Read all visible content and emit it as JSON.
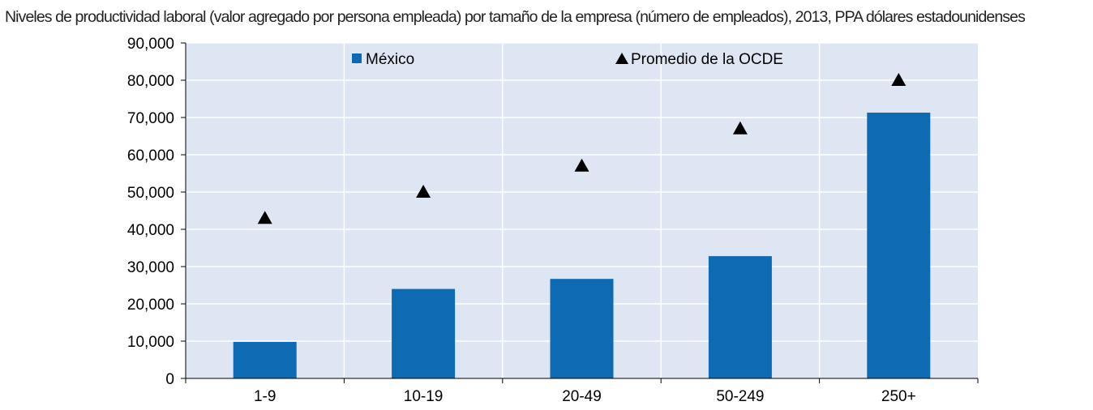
{
  "chart_data": {
    "type": "bar",
    "title": "Niveles de productividad laboral (valor agregado por persona empleada) por tamaño de la empresa (número de empleados), 2013, PPA dólares estadounidenses",
    "categories": [
      "1-9",
      "10-19",
      "20-49",
      "50-249",
      "250+"
    ],
    "series": [
      {
        "name": "México",
        "kind": "bar",
        "color": "#0f6ab4",
        "values": [
          9800,
          24000,
          26700,
          32800,
          71300
        ]
      },
      {
        "name": "Promedio de la OCDE",
        "kind": "marker-triangle",
        "color": "#000000",
        "values": [
          43000,
          50000,
          57000,
          67000,
          80000
        ]
      }
    ],
    "ylim": [
      0,
      90000
    ],
    "yticks": [
      0,
      10000,
      20000,
      30000,
      40000,
      50000,
      60000,
      70000,
      80000,
      90000
    ],
    "ytick_labels": [
      "0",
      "10,000",
      "20,000",
      "30,000",
      "40,000",
      "50,000",
      "60,000",
      "70,000",
      "80,000",
      "90,000"
    ],
    "grid": true,
    "plot_background": "#dde6f2",
    "legend_position": "top"
  }
}
